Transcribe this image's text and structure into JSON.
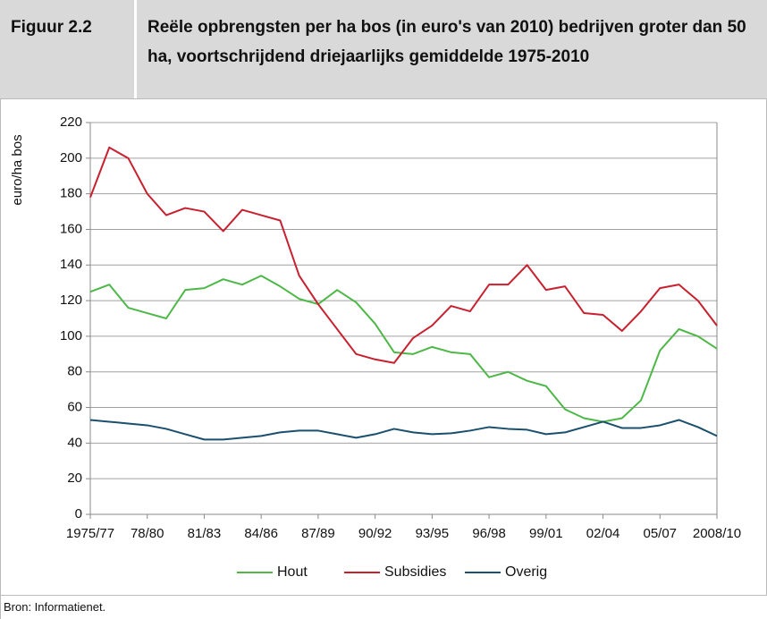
{
  "header": {
    "figure": "Figuur 2.2"
  },
  "footer": {
    "source": "Bron: Informatienet."
  },
  "chart_data": {
    "type": "line",
    "title": "Reële opbrengsten per ha bos (in euro's van 2010) bedrijven groter dan 50 ha, voortschrijdend driejaarlijks gemiddelde 1975-2010",
    "y_label": "euro/ha bos",
    "categories": [
      "1975/77",
      null,
      null,
      "78/80",
      null,
      null,
      "81/83",
      null,
      null,
      "84/86",
      null,
      null,
      "87/89",
      null,
      null,
      "90/92",
      null,
      null,
      "93/95",
      null,
      null,
      "96/98",
      null,
      null,
      "99/01",
      null,
      null,
      "02/04",
      null,
      null,
      "05/07",
      null,
      null,
      "2008/10"
    ],
    "series": [
      {
        "name": "Hout",
        "color": "#4db848",
        "values": [
          125,
          129,
          116,
          113,
          110,
          126,
          127,
          132,
          129,
          134,
          128,
          121,
          118,
          126,
          119,
          107,
          91,
          90,
          94,
          91,
          90,
          77,
          80,
          75,
          72,
          59,
          54,
          52,
          54,
          64,
          92,
          104,
          100,
          93
        ]
      },
      {
        "name": "Subsidies",
        "color": "#c8202f",
        "values": [
          178,
          206,
          200,
          180,
          168,
          172,
          170,
          159,
          171,
          168,
          165,
          134,
          118,
          104,
          90,
          87,
          85,
          99,
          106,
          117,
          114,
          129,
          129,
          140,
          126,
          128,
          113,
          112,
          103,
          114,
          127,
          129,
          120,
          106
        ]
      },
      {
        "name": "Overig",
        "color": "#1a4f6e",
        "values": [
          53,
          52,
          51,
          50,
          48,
          45,
          42,
          42,
          43,
          44,
          46,
          47,
          47,
          45,
          43,
          45,
          48,
          46,
          45,
          45.5,
          47,
          49,
          48,
          47.5,
          45,
          46,
          49,
          52,
          48.5,
          48.5,
          50,
          53,
          49,
          44
        ]
      }
    ],
    "ylim": [
      0,
      220
    ],
    "yticks": [
      0,
      20,
      40,
      60,
      80,
      100,
      120,
      140,
      160,
      180,
      200,
      220
    ],
    "grid": true,
    "legend": "bottom"
  }
}
